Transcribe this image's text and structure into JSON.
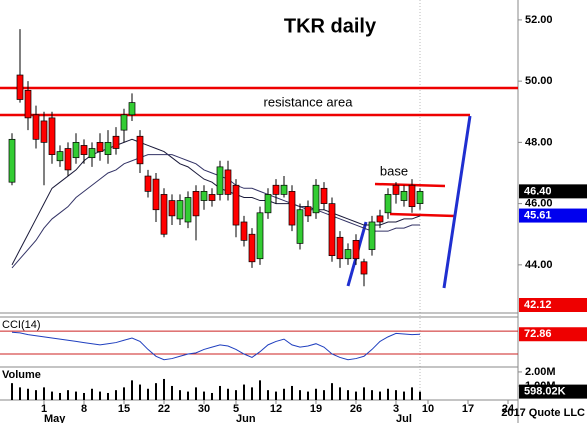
{
  "chart_data": [
    {
      "type": "candlestick",
      "title": "TKR daily",
      "annotations": [
        "resistance area",
        "base"
      ],
      "up_color": "#33cc33",
      "down_color": "#ff0000",
      "categories": [
        null,
        null,
        null,
        null,
        "1",
        null,
        null,
        null,
        null,
        "8",
        null,
        null,
        null,
        null,
        "15",
        null,
        null,
        null,
        null,
        "22",
        null,
        null,
        null,
        null,
        "30",
        null,
        null,
        null,
        "5",
        null,
        null,
        null,
        null,
        "12",
        null,
        null,
        null,
        null,
        "19",
        null,
        null,
        null,
        null,
        "26",
        null,
        null,
        null,
        null,
        "3",
        null,
        null,
        null,
        "10",
        null,
        null,
        null,
        null,
        "17",
        null,
        null,
        null,
        null,
        "24",
        null
      ],
      "months": [
        null,
        null,
        null,
        null,
        "May",
        null,
        null,
        null,
        null,
        null,
        null,
        null,
        null,
        null,
        null,
        null,
        null,
        null,
        null,
        null,
        null,
        null,
        null,
        null,
        null,
        null,
        null,
        null,
        "Jun",
        null,
        null,
        null,
        null,
        null,
        null,
        null,
        null,
        null,
        null,
        null,
        null,
        null,
        null,
        null,
        null,
        null,
        null,
        null,
        "Jul",
        null,
        null,
        null,
        null,
        null,
        null,
        null,
        null,
        null,
        null,
        null,
        null,
        null,
        null,
        null
      ],
      "open": [
        46.7,
        50.2,
        49.7,
        48.9,
        48.7,
        48.8,
        47.4,
        47.8,
        47.5,
        47.9,
        47.5,
        48.0,
        47.6,
        48.2,
        48.4,
        48.9,
        48.2,
        46.9,
        46.8,
        46.3,
        46.1,
        45.5,
        45.4,
        46.4,
        46.1,
        46.3,
        46.3,
        47.1,
        46.6,
        45.4,
        45.0,
        44.2,
        45.7,
        46.6,
        46.3,
        46.4,
        44.7,
        45.9,
        45.7,
        46.5,
        46.0,
        44.9,
        44.2,
        44.8,
        44.1,
        44.5,
        45.6,
        45.7,
        46.6,
        46.1,
        46.6,
        46.0,
        null,
        null,
        null,
        null,
        null,
        null,
        null,
        null,
        null,
        null,
        null,
        null
      ],
      "high": [
        48.3,
        51.7,
        50.0,
        49.2,
        49.0,
        49.0,
        47.9,
        48.0,
        48.3,
        48.1,
        48.0,
        48.3,
        48.4,
        48.5,
        49.1,
        49.6,
        48.4,
        47.1,
        47.0,
        46.5,
        46.3,
        46.3,
        46.4,
        46.6,
        46.6,
        46.5,
        47.4,
        47.4,
        46.8,
        45.6,
        45.2,
        45.9,
        46.5,
        46.8,
        46.9,
        46.6,
        46.0,
        46.1,
        46.8,
        46.7,
        46.2,
        45.1,
        44.7,
        45.0,
        44.2,
        45.6,
        45.8,
        46.5,
        46.7,
        46.6,
        46.8,
        46.5,
        null,
        null,
        null,
        null,
        null,
        null,
        null,
        null,
        null,
        null,
        null,
        null
      ],
      "low": [
        46.6,
        49.3,
        48.4,
        47.8,
        46.6,
        47.3,
        47.2,
        46.9,
        47.3,
        47.3,
        47.2,
        47.4,
        47.3,
        47.6,
        48.0,
        48.7,
        47.0,
        46.2,
        45.4,
        44.9,
        45.3,
        45.3,
        45.2,
        44.8,
        45.8,
        45.9,
        46.1,
        46.1,
        44.9,
        44.6,
        43.9,
        44.0,
        45.5,
        46.0,
        46.2,
        45.1,
        44.5,
        45.4,
        45.5,
        45.8,
        44.1,
        43.9,
        44.0,
        44.0,
        43.3,
        44.3,
        45.2,
        45.5,
        46.0,
        45.9,
        45.7,
        45.8,
        null,
        null,
        null,
        null,
        null,
        null,
        null,
        null,
        null,
        null,
        null,
        null
      ],
      "close": [
        48.1,
        49.4,
        48.8,
        48.1,
        48.0,
        47.6,
        47.7,
        47.1,
        48.0,
        47.6,
        47.8,
        47.7,
        48.0,
        47.8,
        48.9,
        49.3,
        47.3,
        46.4,
        45.8,
        45.0,
        45.6,
        46.1,
        46.2,
        45.6,
        46.4,
        46.1,
        47.2,
        46.3,
        45.3,
        44.8,
        44.1,
        45.7,
        46.3,
        46.3,
        46.6,
        45.3,
        45.8,
        45.6,
        46.6,
        46.0,
        44.3,
        44.2,
        44.5,
        44.2,
        43.7,
        45.4,
        45.4,
        46.3,
        46.3,
        46.4,
        45.9,
        46.4,
        null,
        null,
        null,
        null,
        null,
        null,
        null,
        null,
        null,
        null,
        null,
        null
      ],
      "series": [
        {
          "color": "#1a1a3a",
          "values": [
            44.0,
            44.5,
            45.0,
            45.5,
            46.0,
            46.5,
            46.7,
            46.9,
            47.1,
            47.4,
            47.6,
            47.7,
            47.8,
            47.9,
            48.0,
            48.1,
            48.0,
            47.9,
            47.8,
            47.7,
            47.5,
            47.3,
            47.2,
            47.0,
            46.8,
            46.7,
            46.5,
            46.4,
            46.3,
            46.2,
            46.2,
            46.1,
            46.1,
            46.0,
            46.0,
            46.0,
            45.9,
            45.9,
            45.8,
            45.8,
            45.7,
            45.6,
            45.5,
            45.4,
            45.3,
            45.3,
            45.3,
            45.4,
            45.4,
            45.5,
            45.5,
            45.6,
            null,
            null,
            null,
            null,
            null,
            null,
            null,
            null,
            null,
            null,
            null,
            null
          ]
        },
        {
          "color": "#333366",
          "values": [
            43.9,
            44.2,
            44.5,
            44.8,
            45.2,
            45.5,
            45.7,
            45.9,
            46.2,
            46.4,
            46.6,
            46.8,
            47.0,
            47.1,
            47.3,
            47.4,
            47.5,
            47.6,
            47.6,
            47.6,
            47.6,
            47.5,
            47.4,
            47.3,
            47.1,
            47.0,
            46.9,
            46.8,
            46.6,
            46.5,
            46.5,
            46.4,
            46.3,
            46.2,
            46.1,
            46.0,
            45.9,
            45.8,
            45.8,
            45.7,
            45.6,
            45.5,
            45.4,
            45.3,
            45.2,
            45.1,
            45.1,
            45.1,
            45.2,
            45.2,
            45.3,
            45.3,
            null,
            null,
            null,
            null,
            null,
            null,
            null,
            null,
            null,
            null,
            null,
            null
          ]
        }
      ],
      "ylim": [
        42.46,
        52.65
      ],
      "yticks": [
        {
          "value": 52,
          "label": "52.00"
        },
        {
          "value": 50,
          "label": "50.00"
        },
        {
          "value": 48,
          "label": "48.00"
        },
        {
          "value": 46,
          "label": "46.00"
        },
        {
          "value": 44,
          "label": "44.00"
        }
      ],
      "flags": [
        {
          "value": 46.4,
          "label": "46.40",
          "color": "#000000"
        },
        {
          "value": 45.61,
          "label": "45.61",
          "color": "#0000ee"
        },
        {
          "value": 42.12,
          "label": "42.12",
          "color": "#ee0000"
        }
      ]
    },
    {
      "type": "line",
      "title": "CCI(14)",
      "color": "#1f3fbf",
      "values": [
        90,
        85,
        70,
        60,
        50,
        40,
        30,
        20,
        10,
        0,
        -10,
        -20,
        -10,
        0,
        20,
        40,
        10,
        -60,
        -120,
        -150,
        -140,
        -120,
        -100,
        -90,
        -60,
        -40,
        -20,
        -30,
        -60,
        -100,
        -130,
        -80,
        -20,
        10,
        30,
        -20,
        -40,
        -30,
        -10,
        -40,
        -100,
        -130,
        -150,
        -140,
        -120,
        -60,
        10,
        50,
        80,
        75,
        70,
        72.86
      ],
      "levels": [
        100,
        -100
      ],
      "level_color": "#cc2222",
      "ylim": [
        -205,
        215
      ],
      "flags": [
        {
          "value": 72.86,
          "label": "72.86",
          "color": "#ee0000"
        }
      ]
    },
    {
      "type": "bar",
      "title": "Volume",
      "color": "#000000",
      "values": [
        1200000,
        900000,
        800000,
        700000,
        900000,
        600000,
        500000,
        700000,
        600000,
        500000,
        800000,
        600000,
        500000,
        700000,
        900000,
        1400000,
        1100000,
        800000,
        1200000,
        1500000,
        1000000,
        700000,
        600000,
        900000,
        600000,
        500000,
        1000000,
        800000,
        700000,
        1100000,
        900000,
        1400000,
        700000,
        600000,
        800000,
        1000000,
        700000,
        600000,
        800000,
        700000,
        1200000,
        900000,
        700000,
        600000,
        900000,
        700000,
        600000,
        800000,
        700000,
        600000,
        900000,
        598020
      ],
      "ylim": [
        0,
        2280000
      ],
      "yticks": [
        {
          "value": 2000000,
          "label": "2.00M"
        },
        {
          "value": 1000000,
          "label": "1.00M"
        }
      ],
      "flags": [
        {
          "value": 598020,
          "label": "598.02K",
          "color": "#000000"
        }
      ],
      "source": "2017 Quote LLC"
    }
  ]
}
